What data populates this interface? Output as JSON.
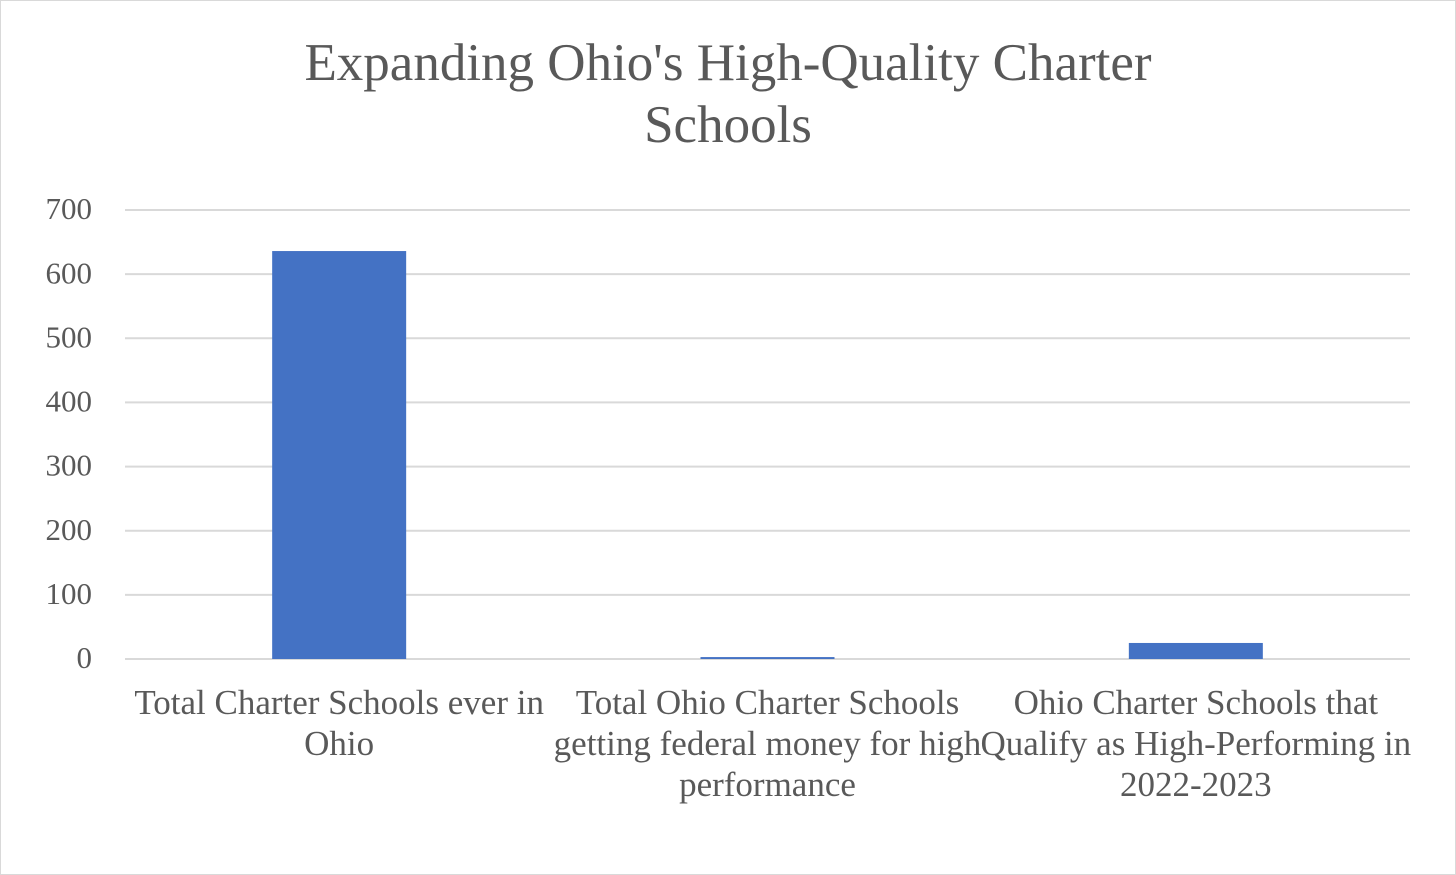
{
  "chart_data": {
    "type": "bar",
    "title": "Expanding Ohio's High-Quality Charter Schools",
    "categories": [
      "Total Charter Schools ever in Ohio",
      "Total Ohio Charter Schools getting federal money for high performance",
      "Ohio Charter Schools that Qualify as High-Performing in 2022-2023"
    ],
    "values": [
      636,
      3,
      25
    ],
    "color": "#4472c4",
    "ylim": [
      0,
      700
    ],
    "yticks": [
      0,
      100,
      200,
      300,
      400,
      500,
      600,
      700
    ],
    "grid": true
  }
}
